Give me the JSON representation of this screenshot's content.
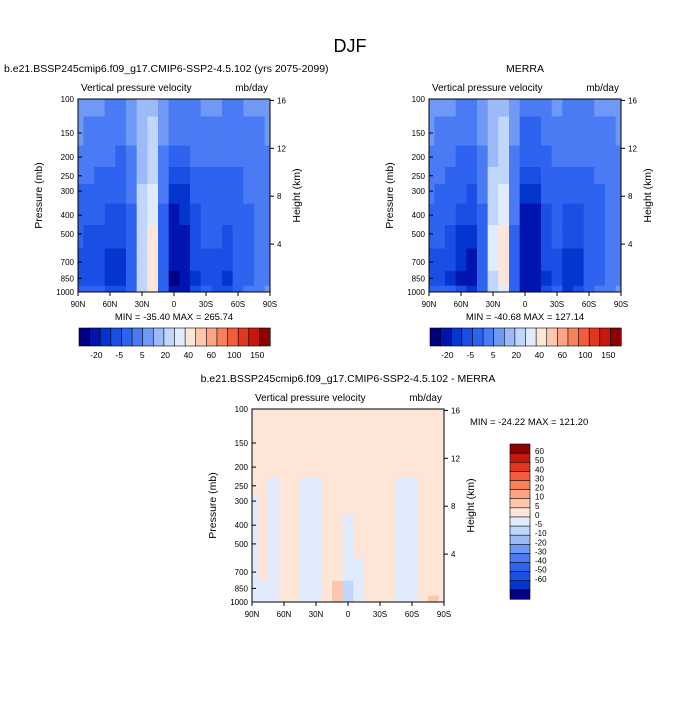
{
  "figure": {
    "title": "DJF"
  },
  "chart_data": [
    {
      "type": "heatmap",
      "title": "b.e21.BSSP245cmip6.f09_g17.CMIP6-SSP2-4.5.102 (yrs 2075-2099)",
      "variable_label": "Vertical pressure velocity",
      "units_label": "mb/day",
      "ylabel": "Pressure (mb)",
      "y2label": "Height (km)",
      "x_ticks": [
        "90N",
        "60N",
        "30N",
        "0",
        "30S",
        "60S",
        "90S"
      ],
      "x_range": [
        "90N",
        "90S"
      ],
      "y_ticks": [
        "100",
        "150",
        "200",
        "250",
        "300",
        "400",
        "500",
        "700",
        "850",
        "1000"
      ],
      "y_range": [
        1000,
        100
      ],
      "y_scale": "log",
      "y2_ticks": [
        "4",
        "8",
        "12",
        "16"
      ],
      "min_max_label": "MIN = -35.40   MAX = 265.74",
      "min": -35.4,
      "max": 265.74,
      "colorbar": {
        "orientation": "horizontal",
        "tick_labels": [
          "-20",
          "-5",
          "5",
          "20",
          "40",
          "60",
          "100",
          "150"
        ],
        "colors": [
          "#000080",
          "#0015b0",
          "#0535cf",
          "#1a4fe6",
          "#2e63f0",
          "#4a7bf5",
          "#7099f5",
          "#9bbaf7",
          "#c0d6fb",
          "#e0ecfd",
          "#fde6d8",
          "#fcc7ad",
          "#fba584",
          "#f8815c",
          "#f15d3c",
          "#e13620",
          "#c41a0e",
          "#8c0303"
        ]
      },
      "field": {
        "lat_sections": [
          "90N",
          "80N",
          "70N",
          "60N",
          "50N",
          "40N",
          "30N",
          "20N",
          "10N",
          "0",
          "10S",
          "20S",
          "30S",
          "40S",
          "50S",
          "60S",
          "70S",
          "80S",
          "90S"
        ],
        "levels_mb": [
          1000,
          850,
          700,
          500,
          400,
          300,
          250,
          200,
          150,
          100
        ],
        "description_values": [
          [
            -8,
            -14,
            -12,
            -10,
            -8,
            -6,
            -4,
            -3,
            -2,
            -2
          ],
          [
            -9,
            -13,
            -12,
            -11,
            -9,
            -7,
            -5,
            -4,
            -3,
            -2
          ],
          [
            -10,
            -14,
            -13,
            -12,
            -10,
            -8,
            -6,
            -5,
            -3,
            -2
          ],
          [
            -12,
            -18,
            -16,
            -14,
            -12,
            -9,
            -7,
            -5,
            -4,
            -3
          ],
          [
            -14,
            -20,
            -18,
            -15,
            -13,
            -10,
            -8,
            -6,
            -4,
            -3
          ],
          [
            -6,
            -8,
            -7,
            -6,
            -6,
            -5,
            -4,
            -3,
            -2,
            -2
          ],
          [
            2,
            3,
            4,
            4,
            3,
            2,
            1,
            1,
            0,
            0
          ],
          [
            10,
            12,
            14,
            12,
            9,
            6,
            4,
            3,
            2,
            1
          ],
          [
            -8,
            -10,
            -9,
            -8,
            -7,
            -5,
            -4,
            -3,
            -2,
            -1
          ],
          [
            -30,
            -32,
            -30,
            -26,
            -22,
            -16,
            -12,
            -8,
            -5,
            -3
          ],
          [
            -24,
            -26,
            -25,
            -22,
            -20,
            -16,
            -12,
            -8,
            -5,
            -3
          ],
          [
            -14,
            -16,
            -15,
            -13,
            -11,
            -9,
            -7,
            -5,
            -4,
            -3
          ],
          [
            -10,
            -12,
            -11,
            -10,
            -9,
            -7,
            -6,
            -4,
            -3,
            -2
          ],
          [
            -12,
            -14,
            -12,
            -10,
            -9,
            -7,
            -6,
            -5,
            -3,
            -2
          ],
          [
            -14,
            -16,
            -14,
            -12,
            -10,
            -8,
            -6,
            -5,
            -4,
            -3
          ],
          [
            -8,
            -10,
            -9,
            -9,
            -8,
            -7,
            -6,
            -5,
            -4,
            -3
          ],
          [
            -4,
            -6,
            -6,
            -6,
            -6,
            -5,
            -5,
            -4,
            -3,
            -2
          ],
          [
            -3,
            -4,
            -4,
            -4,
            -4,
            -4,
            -4,
            -3,
            -3,
            -2
          ],
          [
            -2,
            -3,
            -3,
            -3,
            -3,
            -3,
            -3,
            -3,
            -2,
            -2
          ]
        ]
      }
    },
    {
      "type": "heatmap",
      "title": "MERRA",
      "variable_label": "Vertical pressure velocity",
      "units_label": "mb/day",
      "ylabel": "Pressure (mb)",
      "y2label": "Height (km)",
      "x_ticks": [
        "90N",
        "60N",
        "30N",
        "0",
        "30S",
        "60S",
        "90S"
      ],
      "x_range": [
        "90N",
        "90S"
      ],
      "y_ticks": [
        "100",
        "150",
        "200",
        "250",
        "300",
        "400",
        "500",
        "700",
        "850",
        "1000"
      ],
      "y_range": [
        1000,
        100
      ],
      "y_scale": "log",
      "y2_ticks": [
        "4",
        "8",
        "12",
        "16"
      ],
      "min_max_label": "MIN = -40.68   MAX = 127.14",
      "min": -40.68,
      "max": 127.14,
      "colorbar": {
        "orientation": "horizontal",
        "tick_labels": [
          "-20",
          "-5",
          "5",
          "20",
          "40",
          "60",
          "100",
          "150"
        ],
        "colors": [
          "#000080",
          "#0015b0",
          "#0535cf",
          "#1a4fe6",
          "#2e63f0",
          "#4a7bf5",
          "#7099f5",
          "#9bbaf7",
          "#c0d6fb",
          "#e0ecfd",
          "#fde6d8",
          "#fcc7ad",
          "#fba584",
          "#f8815c",
          "#f15d3c",
          "#e13620",
          "#c41a0e",
          "#8c0303"
        ]
      },
      "field": {
        "lat_sections": [
          "90N",
          "80N",
          "70N",
          "60N",
          "50N",
          "40N",
          "30N",
          "20N",
          "10N",
          "0",
          "10S",
          "20S",
          "30S",
          "40S",
          "50S",
          "60S",
          "70S",
          "80S",
          "90S"
        ],
        "levels_mb": [
          1000,
          850,
          700,
          500,
          400,
          300,
          250,
          200,
          150,
          100
        ],
        "description_values": [
          [
            -6,
            -12,
            -11,
            -9,
            -7,
            -5,
            -4,
            -3,
            -2,
            -2
          ],
          [
            -8,
            -13,
            -12,
            -10,
            -8,
            -6,
            -5,
            -4,
            -3,
            -2
          ],
          [
            -10,
            -16,
            -14,
            -12,
            -10,
            -8,
            -6,
            -5,
            -3,
            -2
          ],
          [
            -14,
            -22,
            -20,
            -17,
            -14,
            -10,
            -8,
            -6,
            -4,
            -3
          ],
          [
            -16,
            -24,
            -22,
            -18,
            -15,
            -11,
            -8,
            -6,
            -4,
            -3
          ],
          [
            -8,
            -10,
            -9,
            -8,
            -7,
            -5,
            -4,
            -3,
            -2,
            -2
          ],
          [
            2,
            4,
            5,
            5,
            4,
            3,
            2,
            1,
            0,
            0
          ],
          [
            8,
            10,
            12,
            11,
            9,
            6,
            4,
            3,
            2,
            1
          ],
          [
            -6,
            -8,
            -7,
            -6,
            -5,
            -4,
            -3,
            -3,
            -2,
            -1
          ],
          [
            -26,
            -30,
            -28,
            -26,
            -24,
            -18,
            -14,
            -9,
            -6,
            -3
          ],
          [
            -22,
            -26,
            -25,
            -24,
            -22,
            -17,
            -13,
            -9,
            -6,
            -3
          ],
          [
            -14,
            -16,
            -15,
            -14,
            -12,
            -10,
            -8,
            -6,
            -4,
            -3
          ],
          [
            -10,
            -12,
            -11,
            -10,
            -9,
            -8,
            -6,
            -5,
            -3,
            -2
          ],
          [
            -16,
            -20,
            -18,
            -15,
            -12,
            -9,
            -7,
            -5,
            -4,
            -3
          ],
          [
            -14,
            -18,
            -16,
            -14,
            -12,
            -9,
            -7,
            -5,
            -4,
            -3
          ],
          [
            -8,
            -10,
            -10,
            -9,
            -8,
            -7,
            -6,
            -5,
            -4,
            -3
          ],
          [
            -4,
            -7,
            -7,
            -7,
            -6,
            -6,
            -5,
            -4,
            -3,
            -2
          ],
          [
            -3,
            -5,
            -5,
            -5,
            -5,
            -4,
            -4,
            -3,
            -3,
            -2
          ],
          [
            -2,
            -3,
            -3,
            -3,
            -3,
            -3,
            -3,
            -3,
            -2,
            -2
          ]
        ]
      }
    },
    {
      "type": "heatmap",
      "title": "b.e21.BSSP245cmip6.f09_g17.CMIP6-SSP2-4.5.102 - MERRA",
      "variable_label": "Vertical pressure velocity",
      "units_label": "mb/day",
      "ylabel": "Pressure (mb)",
      "y2label": "Height (km)",
      "x_ticks": [
        "90N",
        "60N",
        "30N",
        "0",
        "30S",
        "60S",
        "90S"
      ],
      "x_range": [
        "90N",
        "90S"
      ],
      "y_ticks": [
        "100",
        "150",
        "200",
        "250",
        "300",
        "400",
        "500",
        "700",
        "850",
        "1000"
      ],
      "y_range": [
        1000,
        100
      ],
      "y_scale": "log",
      "y2_ticks": [
        "4",
        "8",
        "12",
        "16"
      ],
      "min_max_label": "MIN = -24.22   MAX = 121.20",
      "min": -24.22,
      "max": 121.2,
      "colorbar": {
        "orientation": "vertical",
        "tick_labels": [
          "60",
          "50",
          "40",
          "30",
          "20",
          "10",
          "5",
          "0",
          "-5",
          "-10",
          "-20",
          "-30",
          "-40",
          "-50",
          "-60"
        ],
        "colors": [
          "#8c0303",
          "#c41a0e",
          "#e13620",
          "#f15d3c",
          "#f8815c",
          "#fba584",
          "#fcc7ad",
          "#fde6d8",
          "#e0ecfd",
          "#c0d6fb",
          "#9bbaf7",
          "#7099f5",
          "#4a7bf5",
          "#2e63f0",
          "#1a4fe6",
          "#0535cf",
          "#000080"
        ]
      },
      "field": {
        "lat_sections": [
          "90N",
          "80N",
          "70N",
          "60N",
          "50N",
          "40N",
          "30N",
          "20N",
          "10N",
          "0",
          "10S",
          "20S",
          "30S",
          "40S",
          "50S",
          "60S",
          "70S",
          "80S",
          "90S"
        ],
        "levels_mb": [
          1000,
          850,
          700,
          500,
          400,
          300,
          250,
          200,
          150,
          100
        ],
        "description_values": [
          [
            -2,
            -2,
            -1,
            -1,
            -1,
            -1,
            0,
            0,
            0,
            0
          ],
          [
            -1,
            -1,
            1,
            1,
            1,
            1,
            1,
            0,
            0,
            0
          ],
          [
            -2,
            -2,
            -1,
            -2,
            -2,
            -1,
            -1,
            0,
            0,
            0
          ],
          [
            2,
            3,
            3,
            3,
            2,
            1,
            1,
            1,
            0,
            0
          ],
          [
            2,
            3,
            4,
            3,
            2,
            1,
            1,
            0,
            0,
            0
          ],
          [
            -2,
            -2,
            -2,
            -2,
            -1,
            -1,
            -1,
            0,
            0,
            0
          ],
          [
            -1,
            -2,
            -1,
            -1,
            -1,
            -1,
            -1,
            0,
            0,
            0
          ],
          [
            2,
            3,
            2,
            2,
            1,
            1,
            1,
            0,
            0,
            0
          ],
          [
            6,
            8,
            4,
            3,
            2,
            1,
            1,
            1,
            0,
            0
          ],
          [
            -6,
            -8,
            -4,
            -2,
            -2,
            2,
            2,
            1,
            1,
            0
          ],
          [
            -2,
            -2,
            -1,
            2,
            2,
            1,
            1,
            1,
            1,
            0
          ],
          [
            1,
            2,
            2,
            1,
            1,
            1,
            1,
            1,
            0,
            0
          ],
          [
            2,
            2,
            2,
            2,
            1,
            1,
            1,
            1,
            0,
            0
          ],
          [
            4,
            4,
            3,
            2,
            2,
            1,
            1,
            1,
            0,
            0
          ],
          [
            -2,
            -2,
            -2,
            -2,
            -1,
            -1,
            -1,
            0,
            0,
            0
          ],
          [
            -1,
            -1,
            -1,
            -1,
            -1,
            -1,
            -1,
            0,
            0,
            0
          ],
          [
            2,
            2,
            2,
            1,
            1,
            1,
            1,
            0,
            0,
            0
          ],
          [
            6,
            4,
            2,
            1,
            1,
            1,
            1,
            0,
            0,
            0
          ],
          [
            1,
            1,
            1,
            1,
            1,
            1,
            1,
            0,
            0,
            0
          ]
        ]
      }
    }
  ]
}
